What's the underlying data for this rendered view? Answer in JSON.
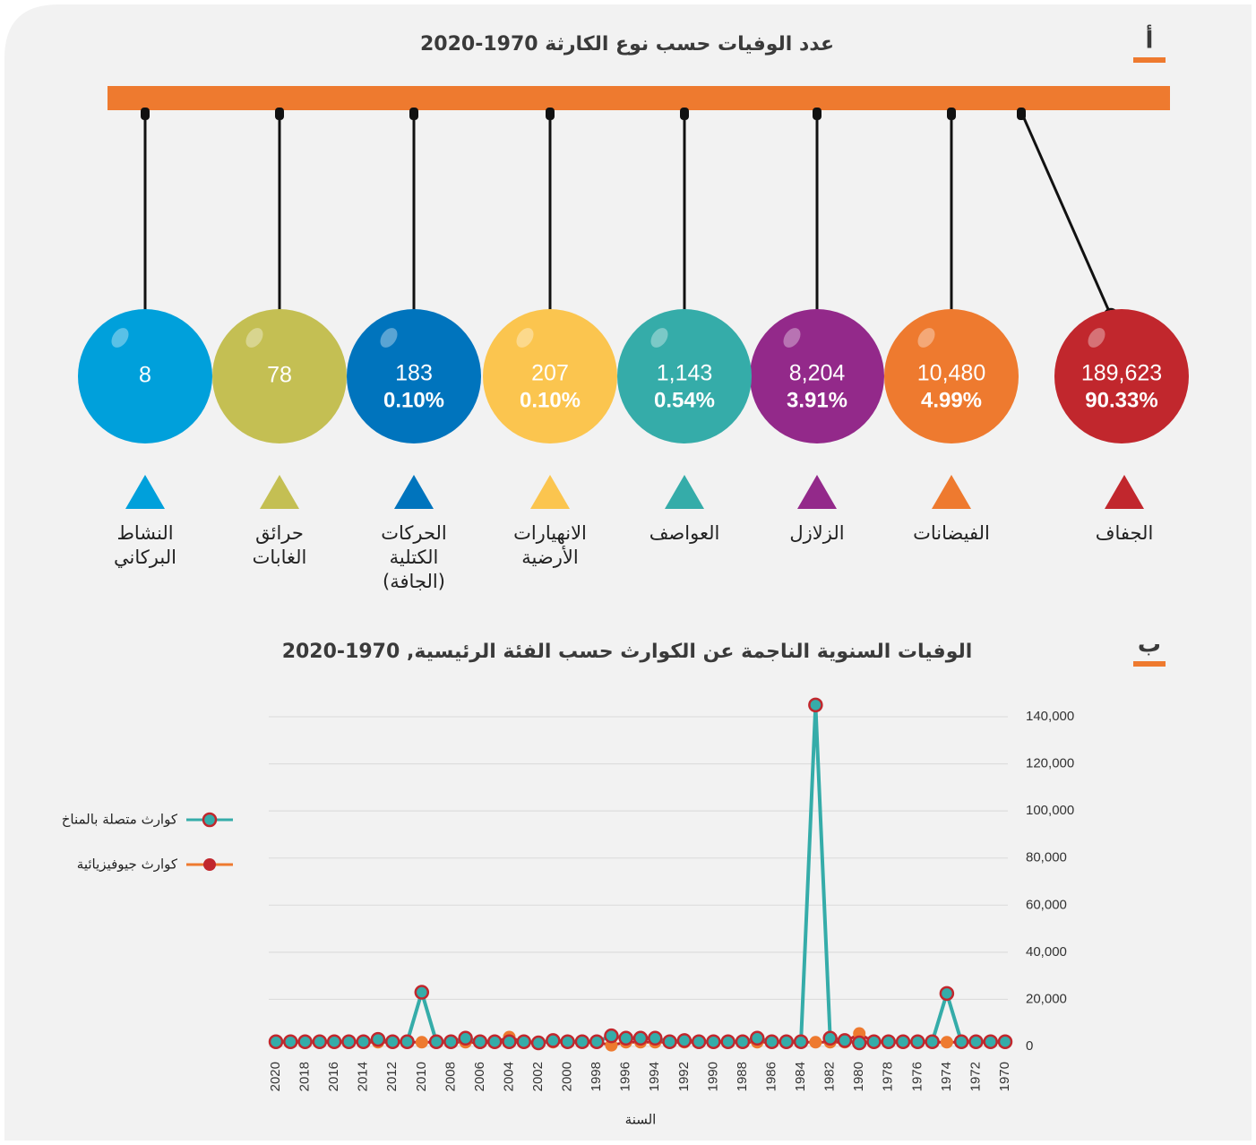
{
  "panel_a": {
    "label": "أ",
    "title": "عدد الوفيات حسب نوع الكارثة 1970-2020",
    "items": [
      {
        "name_lines": [
          "الجفاف"
        ],
        "deaths": "189,623",
        "share": "90.33%",
        "color": "#c1272d"
      },
      {
        "name_lines": [
          "الفيضانات"
        ],
        "deaths": "10,480",
        "share": "4.99%",
        "color": "#ee7a2f"
      },
      {
        "name_lines": [
          "الزلازل"
        ],
        "deaths": "8,204",
        "share": "3.91%",
        "color": "#93298a"
      },
      {
        "name_lines": [
          "العواصف"
        ],
        "deaths": "1,143",
        "share": "0.54%",
        "color": "#35aca9"
      },
      {
        "name_lines": [
          "الانهيارات",
          "الأرضية"
        ],
        "deaths": "207",
        "share": "0.10%",
        "color": "#fbc54f"
      },
      {
        "name_lines": [
          "الحركات",
          "الكتلية",
          "(الجافة)"
        ],
        "deaths": "183",
        "share": "0.10%",
        "color": "#0074bd"
      },
      {
        "name_lines": [
          "حرائق",
          "الغابات"
        ],
        "deaths": "78",
        "color": "#c4bf53"
      },
      {
        "name_lines": [
          "النشاط",
          "البركاني"
        ],
        "deaths": "8",
        "color": "#00a0db"
      }
    ]
  },
  "chart_data": {
    "type": "line",
    "label": "ب",
    "title": "الوفيات السنوية الناجمة عن الكوارث حسب الفئة الرئيسية, 1970-2020",
    "x_label": "السنة",
    "x": [
      1970,
      1971,
      1972,
      1973,
      1974,
      1975,
      1976,
      1977,
      1978,
      1979,
      1980,
      1981,
      1982,
      1983,
      1984,
      1985,
      1986,
      1987,
      1988,
      1989,
      1990,
      1991,
      1992,
      1993,
      1994,
      1995,
      1996,
      1997,
      1998,
      1999,
      2000,
      2001,
      2002,
      2003,
      2004,
      2005,
      2006,
      2007,
      2008,
      2009,
      2010,
      2011,
      2012,
      2013,
      2014,
      2015,
      2016,
      2017,
      2018,
      2019,
      2020
    ],
    "xlim": [
      2020,
      1970
    ],
    "xticks": [
      1970,
      1972,
      1974,
      1976,
      1978,
      1980,
      1982,
      1984,
      1986,
      1988,
      1990,
      1992,
      1994,
      1996,
      1998,
      2000,
      2002,
      2004,
      2006,
      2008,
      2010,
      2012,
      2014,
      2016,
      2018,
      2020
    ],
    "ylim": [
      0,
      150000
    ],
    "yticks": [
      0,
      {
        "value": 20000,
        "label": "20,000"
      },
      {
        "value": 40000,
        "label": "40,000"
      },
      {
        "value": 60000,
        "label": "60,000"
      },
      {
        "value": 80000,
        "label": "80,000"
      },
      {
        "value": 100000,
        "label": "100,000"
      },
      {
        "value": 120000,
        "label": "120,000"
      },
      {
        "value": 140000,
        "label": "140,000"
      }
    ],
    "grid": true,
    "series": [
      {
        "name": "كوارث متصلة بالمناخ",
        "color": "#35aca9",
        "marker_edge": "#c1272d",
        "values": [
          2000,
          2000,
          2000,
          2000,
          22500,
          2000,
          2000,
          2000,
          2000,
          2000,
          1500,
          2500,
          3500,
          145000,
          2000,
          2000,
          2000,
          3500,
          2000,
          2000,
          2000,
          2000,
          2500,
          2000,
          3500,
          3500,
          3500,
          4500,
          2000,
          2000,
          2000,
          2500,
          1500,
          2000,
          2000,
          2000,
          2000,
          3500,
          2000,
          2000,
          23000,
          2000,
          2000,
          3000,
          2000,
          2000,
          2000,
          2000,
          2000,
          2000,
          2000
        ]
      },
      {
        "name": "كوارث جيوفيزيائية",
        "color": "#c1272d",
        "marker_fill": "#ee7a2f",
        "values": [
          1800,
          1800,
          1800,
          1800,
          1800,
          1800,
          1800,
          1800,
          1800,
          1800,
          5500,
          1800,
          1800,
          1800,
          1800,
          1800,
          1800,
          1800,
          1800,
          1800,
          1800,
          1800,
          1800,
          1800,
          1800,
          1800,
          1800,
          500,
          1800,
          1800,
          1800,
          1800,
          1800,
          1800,
          4000,
          1800,
          1500,
          1800,
          1800,
          1800,
          1800,
          1800,
          1800,
          1800,
          1800,
          1800,
          1800,
          1800,
          1800,
          1800,
          1800
        ]
      }
    ],
    "legend": "left"
  }
}
